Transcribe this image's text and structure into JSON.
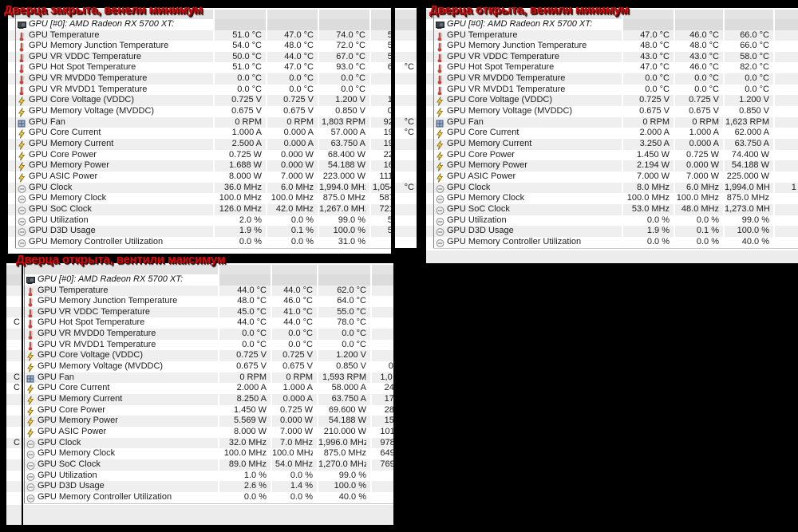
{
  "colors": {
    "annotation_red": "#cf0d0d",
    "row_alt_gray": "#efefef",
    "header_gray": "#e3e3e3",
    "group_cell_gray": "#dcdcdc",
    "footer_gray": "#ececec",
    "bolt_yellow": "#ffd23e",
    "thermometer_red": "#d23b2f"
  },
  "panels": [
    {
      "title": "Дверца закрыта, венели минимум",
      "device": "GPU [#0]: AMD Radeon RX 5700 XT:",
      "device_icon": "gpu-icon",
      "rows": [
        {
          "icon": "thermometer-icon",
          "label": "GPU Temperature",
          "current": "51.0 °C",
          "minimum": "47.0 °C",
          "maximum": "74.0 °C",
          "clipped": "5"
        },
        {
          "icon": "thermometer-icon",
          "label": "GPU Memory Junction Temperature",
          "current": "54.0 °C",
          "minimum": "48.0 °C",
          "maximum": "72.0 °C",
          "clipped": "5"
        },
        {
          "icon": "thermometer-icon",
          "label": "GPU VR VDDC Temperature",
          "current": "50.0 °C",
          "minimum": "44.0 °C",
          "maximum": "67.0 °C",
          "clipped": "5"
        },
        {
          "icon": "thermometer-icon",
          "label": "GPU Hot Spot Temperature",
          "current": "51.0 °C",
          "minimum": "47.0 °C",
          "maximum": "93.0 °C",
          "clipped": "6"
        },
        {
          "icon": "thermometer-icon",
          "label": "GPU VR MVDD0 Temperature",
          "current": "0.0 °C",
          "minimum": "0.0 °C",
          "maximum": "0.0 °C",
          "clipped": ""
        },
        {
          "icon": "thermometer-icon",
          "label": "GPU VR MVDD1 Temperature",
          "current": "0.0 °C",
          "minimum": "0.0 °C",
          "maximum": "0.0 °C",
          "clipped": ""
        },
        {
          "icon": "bolt-icon",
          "label": "GPU Core Voltage (VDDC)",
          "current": "0.725 V",
          "minimum": "0.725 V",
          "maximum": "1.200 V",
          "clipped": "1"
        },
        {
          "icon": "bolt-icon",
          "label": "GPU Memory Voltage (MVDDC)",
          "current": "0.675 V",
          "minimum": "0.675 V",
          "maximum": "0.850 V",
          "clipped": "0"
        },
        {
          "icon": "fan-icon",
          "label": "GPU Fan",
          "current": "0 RPM",
          "minimum": "0 RPM",
          "maximum": "1,803 RPM",
          "clipped": "92"
        },
        {
          "icon": "bolt-icon",
          "label": "GPU Core Current",
          "current": "1.000 A",
          "minimum": "0.000 A",
          "maximum": "57.000 A",
          "clipped": "19"
        },
        {
          "icon": "bolt-icon",
          "label": "GPU Memory Current",
          "current": "2.500 A",
          "minimum": "0.000 A",
          "maximum": "63.750 A",
          "clipped": "19"
        },
        {
          "icon": "bolt-icon",
          "label": "GPU Core Power",
          "current": "0.725 W",
          "minimum": "0.000 W",
          "maximum": "68.400 W",
          "clipped": "22"
        },
        {
          "icon": "bolt-icon",
          "label": "GPU Memory Power",
          "current": "1.688 W",
          "minimum": "0.000 W",
          "maximum": "54.188 W",
          "clipped": "16"
        },
        {
          "icon": "bolt-icon",
          "label": "GPU ASIC Power",
          "current": "8.000 W",
          "minimum": "7.000 W",
          "maximum": "223.000 W",
          "clipped": "111"
        },
        {
          "icon": "clock-icon",
          "label": "GPU Clock",
          "current": "36.0 MHz",
          "minimum": "6.0 MHz",
          "maximum": "1,994.0 MHz",
          "clipped": "1,054"
        },
        {
          "icon": "clock-icon",
          "label": "GPU Memory Clock",
          "current": "100.0 MHz",
          "minimum": "100.0 MHz",
          "maximum": "875.0 MHz",
          "clipped": "587"
        },
        {
          "icon": "clock-icon",
          "label": "GPU SoC Clock",
          "current": "126.0 MHz",
          "minimum": "42.0 MHz",
          "maximum": "1,267.0 MHz",
          "clipped": "721"
        },
        {
          "icon": "clock-icon",
          "label": "GPU Utilization",
          "current": "2.0 %",
          "minimum": "0.0 %",
          "maximum": "99.0 %",
          "clipped": "5"
        },
        {
          "icon": "clock-icon",
          "label": "GPU D3D Usage",
          "current": "1.9 %",
          "minimum": "0.1 %",
          "maximum": "100.0 %",
          "clipped": "5"
        },
        {
          "icon": "clock-icon",
          "label": "GPU Memory Controller Utilization",
          "current": "0.0 %",
          "minimum": "0.0 %",
          "maximum": "31.0 %",
          "clipped": ""
        }
      ]
    },
    {
      "title": "Дверца открыта, венили минимум",
      "device": "GPU [#0]: AMD Radeon RX 5700 XT:",
      "device_icon": "gpu-icon",
      "rows": [
        {
          "icon": "thermometer-icon",
          "label": "GPU Temperature",
          "current": "47.0 °C",
          "minimum": "46.0 °C",
          "maximum": "66.0 °C",
          "clipped": ""
        },
        {
          "icon": "thermometer-icon",
          "label": "GPU Memory Junction Temperature",
          "current": "48.0 °C",
          "minimum": "48.0 °C",
          "maximum": "66.0 °C",
          "clipped": ""
        },
        {
          "icon": "thermometer-icon",
          "label": "GPU VR VDDC Temperature",
          "current": "43.0 °C",
          "minimum": "43.0 °C",
          "maximum": "58.0 °C",
          "clipped": ""
        },
        {
          "icon": "thermometer-icon",
          "label": "GPU Hot Spot Temperature",
          "current": "47.0 °C",
          "minimum": "46.0 °C",
          "maximum": "82.0 °C",
          "clipped": ""
        },
        {
          "icon": "thermometer-icon",
          "label": "GPU VR MVDD0 Temperature",
          "current": "0.0 °C",
          "minimum": "0.0 °C",
          "maximum": "0.0 °C",
          "clipped": ""
        },
        {
          "icon": "thermometer-icon",
          "label": "GPU VR MVDD1 Temperature",
          "current": "0.0 °C",
          "minimum": "0.0 °C",
          "maximum": "0.0 °C",
          "clipped": ""
        },
        {
          "icon": "bolt-icon",
          "label": "GPU Core Voltage (VDDC)",
          "current": "0.725 V",
          "minimum": "0.725 V",
          "maximum": "1.200 V",
          "clipped": ""
        },
        {
          "icon": "bolt-icon",
          "label": "GPU Memory Voltage (MVDDC)",
          "current": "0.675 V",
          "minimum": "0.675 V",
          "maximum": "0.850 V",
          "clipped": ""
        },
        {
          "icon": "fan-icon",
          "label": "GPU Fan",
          "current": "0 RPM",
          "minimum": "0 RPM",
          "maximum": "1,623 RPM",
          "clipped": ""
        },
        {
          "icon": "bolt-icon",
          "label": "GPU Core Current",
          "current": "2.000 A",
          "minimum": "1.000 A",
          "maximum": "62.000 A",
          "clipped": ""
        },
        {
          "icon": "bolt-icon",
          "label": "GPU Memory Current",
          "current": "3.250 A",
          "minimum": "0.000 A",
          "maximum": "63.750 A",
          "clipped": ""
        },
        {
          "icon": "bolt-icon",
          "label": "GPU Core Power",
          "current": "1.450 W",
          "minimum": "0.725 W",
          "maximum": "74.400 W",
          "clipped": ""
        },
        {
          "icon": "bolt-icon",
          "label": "GPU Memory Power",
          "current": "2.194 W",
          "minimum": "0.000 W",
          "maximum": "54.188 W",
          "clipped": ""
        },
        {
          "icon": "bolt-icon",
          "label": "GPU ASIC Power",
          "current": "7.000 W",
          "minimum": "7.000 W",
          "maximum": "225.000 W",
          "clipped": ""
        },
        {
          "icon": "clock-icon",
          "label": "GPU Clock",
          "current": "8.0 MHz",
          "minimum": "6.0 MHz",
          "maximum": "1,994.0 MHz",
          "clipped": "1"
        },
        {
          "icon": "clock-icon",
          "label": "GPU Memory Clock",
          "current": "100.0 MHz",
          "minimum": "100.0 MHz",
          "maximum": "875.0 MHz",
          "clipped": ""
        },
        {
          "icon": "clock-icon",
          "label": "GPU SoC Clock",
          "current": "53.0 MHz",
          "minimum": "48.0 MHz",
          "maximum": "1,273.0 MHz",
          "clipped": ""
        },
        {
          "icon": "clock-icon",
          "label": "GPU Utilization",
          "current": "0.0 %",
          "minimum": "0.0 %",
          "maximum": "99.0 %",
          "clipped": ""
        },
        {
          "icon": "clock-icon",
          "label": "GPU D3D Usage",
          "current": "1.9 %",
          "minimum": "0.1 %",
          "maximum": "100.0 %",
          "clipped": ""
        },
        {
          "icon": "clock-icon",
          "label": "GPU Memory Controller Utilization",
          "current": "0.0 %",
          "minimum": "0.0 %",
          "maximum": "40.0 %",
          "clipped": ""
        }
      ]
    },
    {
      "title": "Дверца открыта, вентили максимум",
      "device": "GPU [#0]: AMD Radeon RX 5700 XT:",
      "device_icon": "gpu-icon",
      "rows": [
        {
          "icon": "thermometer-icon",
          "label": "GPU Temperature",
          "current": "44.0 °C",
          "minimum": "44.0 °C",
          "maximum": "62.0 °C",
          "clipped": ""
        },
        {
          "icon": "thermometer-icon",
          "label": "GPU Memory Junction Temperature",
          "current": "48.0 °C",
          "minimum": "46.0 °C",
          "maximum": "64.0 °C",
          "clipped": ""
        },
        {
          "icon": "thermometer-icon",
          "label": "GPU VR VDDC Temperature",
          "current": "45.0 °C",
          "minimum": "41.0 °C",
          "maximum": "55.0 °C",
          "clipped": ""
        },
        {
          "icon": "thermometer-icon",
          "label": "GPU Hot Spot Temperature",
          "current": "44.0 °C",
          "minimum": "44.0 °C",
          "maximum": "78.0 °C",
          "clipped": ""
        },
        {
          "icon": "thermometer-icon",
          "label": "GPU VR MVDD0 Temperature",
          "current": "0.0 °C",
          "minimum": "0.0 °C",
          "maximum": "0.0 °C",
          "clipped": ""
        },
        {
          "icon": "thermometer-icon",
          "label": "GPU VR MVDD1 Temperature",
          "current": "0.0 °C",
          "minimum": "0.0 °C",
          "maximum": "0.0 °C",
          "clipped": ""
        },
        {
          "icon": "bolt-icon",
          "label": "GPU Core Voltage (VDDC)",
          "current": "0.725 V",
          "minimum": "0.725 V",
          "maximum": "1.200 V",
          "clipped": ""
        },
        {
          "icon": "bolt-icon",
          "label": "GPU Memory Voltage (MVDDC)",
          "current": "0.675 V",
          "minimum": "0.675 V",
          "maximum": "0.850 V",
          "clipped": "0"
        },
        {
          "icon": "fan-icon",
          "label": "GPU Fan",
          "current": "0 RPM",
          "minimum": "0 RPM",
          "maximum": "1,593 RPM",
          "clipped": "1,0"
        },
        {
          "icon": "bolt-icon",
          "label": "GPU Core Current",
          "current": "2.000 A",
          "minimum": "1.000 A",
          "maximum": "58.000 A",
          "clipped": "24"
        },
        {
          "icon": "bolt-icon",
          "label": "GPU Memory Current",
          "current": "8.250 A",
          "minimum": "0.000 A",
          "maximum": "63.750 A",
          "clipped": "17"
        },
        {
          "icon": "bolt-icon",
          "label": "GPU Core Power",
          "current": "1.450 W",
          "minimum": "0.725 W",
          "maximum": "69.600 W",
          "clipped": "28"
        },
        {
          "icon": "bolt-icon",
          "label": "GPU Memory Power",
          "current": "5.569 W",
          "minimum": "0.000 W",
          "maximum": "54.188 W",
          "clipped": "15"
        },
        {
          "icon": "bolt-icon",
          "label": "GPU ASIC Power",
          "current": "8.000 W",
          "minimum": "7.000 W",
          "maximum": "210.000 W",
          "clipped": "101"
        },
        {
          "icon": "clock-icon",
          "label": "GPU Clock",
          "current": "32.0 MHz",
          "minimum": "7.0 MHz",
          "maximum": "1,996.0 MHz",
          "clipped": "978"
        },
        {
          "icon": "clock-icon",
          "label": "GPU Memory Clock",
          "current": "100.0 MHz",
          "minimum": "100.0 MHz",
          "maximum": "875.0 MHz",
          "clipped": "649"
        },
        {
          "icon": "clock-icon",
          "label": "GPU SoC Clock",
          "current": "89.0 MHz",
          "minimum": "54.0 MHz",
          "maximum": "1,270.0 MHz",
          "clipped": "769"
        },
        {
          "icon": "clock-icon",
          "label": "GPU Utilization",
          "current": "1.0 %",
          "minimum": "0.0 %",
          "maximum": "99.0 %",
          "clipped": ""
        },
        {
          "icon": "clock-icon",
          "label": "GPU D3D Usage",
          "current": "2.6 %",
          "minimum": "1.4 %",
          "maximum": "100.0 %",
          "clipped": ""
        },
        {
          "icon": "clock-icon",
          "label": "GPU Memory Controller Utilization",
          "current": "0.0 %",
          "minimum": "0.0 %",
          "maximum": "40.0 %",
          "clipped": ""
        }
      ]
    }
  ],
  "slivers": [
    {
      "fragments": [
        {
          "row": 3,
          "text": "°C"
        },
        {
          "row": 8,
          "text": "°C"
        },
        {
          "row": 9,
          "text": "°C"
        },
        {
          "row": 14,
          "text": "°C"
        }
      ]
    },
    {
      "fragments": [
        {
          "row": 3,
          "text": "C"
        },
        {
          "row": 8,
          "text": "C"
        },
        {
          "row": 9,
          "text": "C"
        },
        {
          "row": 14,
          "text": "C"
        }
      ]
    }
  ]
}
